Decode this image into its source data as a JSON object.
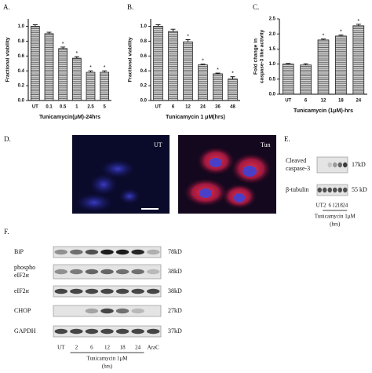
{
  "chart_data": [
    {
      "type": "bar",
      "label": "A.",
      "ylabel": "Fractional viability",
      "xlabel": "Tunicamycin(μM)-24hrs",
      "categories": [
        "UT",
        "0.1",
        "0.5",
        "1",
        "2.5",
        "5"
      ],
      "values": [
        1.0,
        0.9,
        0.7,
        0.57,
        0.38,
        0.38
      ],
      "errors": [
        0.02,
        0.02,
        0.02,
        0.02,
        0.02,
        0.02
      ],
      "significance": [
        null,
        null,
        "*",
        "*",
        "*",
        "*"
      ],
      "color": "#8c8c8c",
      "ylim": [
        0,
        1.1
      ],
      "yticks": [
        {
          "value": 0,
          "label": "0.0"
        },
        0.2,
        0.4,
        0.6,
        0.8,
        {
          "value": 1,
          "label": "1.0"
        }
      ]
    },
    {
      "type": "bar",
      "label": "B.",
      "ylabel": "Fractional viability",
      "xlabel": "Tunicamycin 1 μM(hrs)",
      "categories": [
        "UT",
        "6",
        "12",
        "24",
        "36",
        "48"
      ],
      "values": [
        1.0,
        0.93,
        0.79,
        0.48,
        0.36,
        0.29
      ],
      "errors": [
        0.02,
        0.03,
        0.03,
        0.01,
        0.01,
        0.03
      ],
      "significance": [
        null,
        null,
        "*",
        "*",
        "*",
        "*"
      ],
      "color": "#8c8c8c",
      "ylim": [
        0,
        1.1
      ],
      "yticks": [
        {
          "value": 0,
          "label": "0.0"
        },
        0.2,
        0.4,
        0.6,
        0.8,
        {
          "value": 1,
          "label": "1.0"
        }
      ]
    },
    {
      "type": "bar",
      "label": "C.",
      "ylabel": [
        "Fold change in",
        "caspase-3 like activity"
      ],
      "xlabel": "Tunicamycin (1μM)-hrs",
      "categories": [
        "UT",
        "6",
        "12",
        "18",
        "24"
      ],
      "values": [
        1.0,
        0.97,
        1.8,
        1.93,
        2.27
      ],
      "errors": [
        0.02,
        0.04,
        0.03,
        0.03,
        0.05
      ],
      "significance": [
        null,
        null,
        "*",
        "*",
        "*"
      ],
      "color": "#8c8c8c",
      "ylim": [
        0,
        2.5
      ],
      "yticks": [
        {
          "value": 0,
          "label": "0.0"
        },
        0.5,
        {
          "value": 1,
          "label": "1.0"
        },
        1.5,
        {
          "value": 2,
          "label": "2.0"
        },
        2.5
      ]
    }
  ],
  "panel_d": {
    "label": "D.",
    "images": [
      "UT",
      "Tun"
    ]
  },
  "panel_e": {
    "label": "E.",
    "rows": [
      {
        "name": [
          "Cleaved",
          "caspase-3"
        ],
        "size": "17kD"
      },
      {
        "name": [
          "β-tubulin"
        ],
        "size": "55 kD"
      }
    ],
    "lanes": [
      "UT",
      "2",
      "6",
      "12",
      "18",
      "24"
    ],
    "treatment": "Tunicamycin 1μM",
    "unit": "(hrs)"
  },
  "panel_f": {
    "label": "F.",
    "rows": [
      {
        "name": [
          "BiP"
        ],
        "size": "78kD"
      },
      {
        "name": [
          "phospho",
          "eIF2α"
        ],
        "size": "38kD"
      },
      {
        "name": [
          "eIF2α"
        ],
        "size": "38kD"
      },
      {
        "name": [
          "CHOP"
        ],
        "size": "27kD"
      },
      {
        "name": [
          "GAPDH"
        ],
        "size": "37kD"
      }
    ],
    "lanes": [
      "UT",
      "2",
      "6",
      "12",
      "18",
      "24",
      "AraC"
    ],
    "treatment": "Tunicamycin 1μM",
    "unit": "(hrs)"
  }
}
